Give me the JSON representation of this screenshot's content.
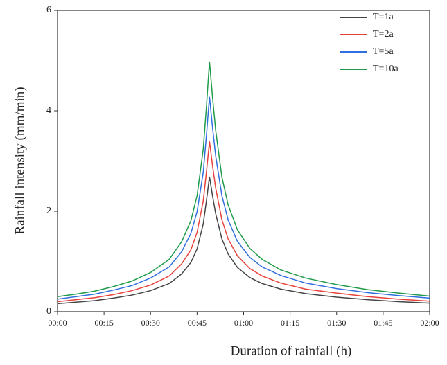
{
  "chart_data": {
    "type": "line",
    "xlabel": "Duration of rainfall (h)",
    "ylabel": "Rainfall intensity (mm/min)",
    "x": [
      0,
      6,
      12,
      18,
      24,
      30,
      36,
      40,
      43,
      45,
      47,
      48,
      49,
      50,
      51,
      53,
      55,
      58,
      62,
      66,
      72,
      80,
      90,
      100,
      110,
      120
    ],
    "series": [
      {
        "name": "T=1a",
        "color": "#444444",
        "values": [
          0.16,
          0.19,
          0.22,
          0.27,
          0.33,
          0.42,
          0.56,
          0.75,
          0.98,
          1.25,
          1.75,
          2.2,
          2.69,
          2.3,
          1.95,
          1.45,
          1.15,
          0.88,
          0.68,
          0.56,
          0.45,
          0.36,
          0.29,
          0.24,
          0.2,
          0.17
        ]
      },
      {
        "name": "T=2a",
        "color": "#e8413a",
        "values": [
          0.2,
          0.24,
          0.28,
          0.34,
          0.42,
          0.53,
          0.71,
          0.95,
          1.23,
          1.58,
          2.21,
          2.77,
          3.39,
          2.9,
          2.46,
          1.83,
          1.45,
          1.11,
          0.86,
          0.71,
          0.57,
          0.45,
          0.37,
          0.3,
          0.25,
          0.21
        ]
      },
      {
        "name": "T=5a",
        "color": "#2f6fe0",
        "values": [
          0.25,
          0.3,
          0.35,
          0.43,
          0.52,
          0.67,
          0.89,
          1.19,
          1.56,
          1.99,
          2.78,
          3.5,
          4.28,
          3.66,
          3.1,
          2.31,
          1.83,
          1.4,
          1.08,
          0.89,
          0.72,
          0.57,
          0.46,
          0.38,
          0.32,
          0.27
        ]
      },
      {
        "name": "T=10a",
        "color": "#1f9a4a",
        "values": [
          0.3,
          0.35,
          0.41,
          0.5,
          0.61,
          0.78,
          1.04,
          1.39,
          1.81,
          2.31,
          3.24,
          4.07,
          4.98,
          4.26,
          3.61,
          2.68,
          2.13,
          1.63,
          1.26,
          1.04,
          0.83,
          0.67,
          0.54,
          0.44,
          0.37,
          0.31
        ]
      }
    ],
    "xlim": [
      0,
      120
    ],
    "xticks": [
      {
        "value": 0,
        "label": "00:00"
      },
      {
        "value": 15,
        "label": "00:15"
      },
      {
        "value": 30,
        "label": "00:30"
      },
      {
        "value": 45,
        "label": "00:45"
      },
      {
        "value": 60,
        "label": "01:00"
      },
      {
        "value": 75,
        "label": "01:15"
      },
      {
        "value": 90,
        "label": "01:30"
      },
      {
        "value": 105,
        "label": "01:45"
      },
      {
        "value": 120,
        "label": "02:00"
      }
    ],
    "ylim": [
      0,
      6
    ],
    "yticks": [
      0,
      2,
      4,
      6
    ],
    "legend": "upper right"
  }
}
